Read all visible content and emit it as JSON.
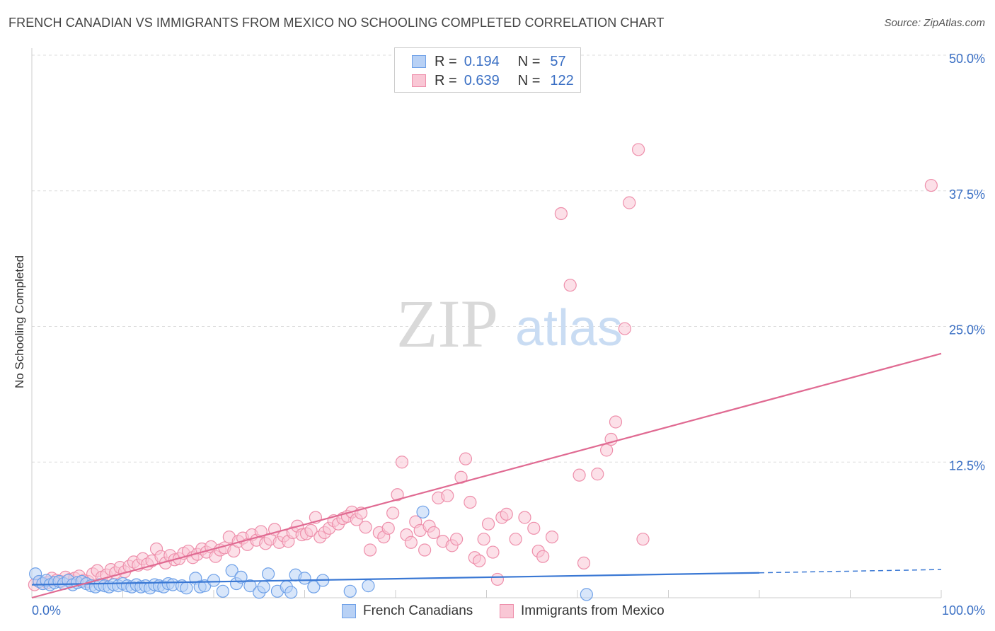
{
  "title": "FRENCH CANADIAN VS IMMIGRANTS FROM MEXICO NO SCHOOLING COMPLETED CORRELATION CHART",
  "source": "Source: ZipAtlas.com",
  "watermark": {
    "zip": "ZIP",
    "atlas": "atlas"
  },
  "legend": {
    "rows": [
      {
        "r_label": "R =",
        "r_value": "0.194",
        "n_label": "N =",
        "n_value": "57",
        "color": "#6fa1e8",
        "fill": "#b8d1f5"
      },
      {
        "r_label": "R =",
        "r_value": "0.639",
        "n_label": "N =",
        "n_value": "122",
        "color": "#ee8fab",
        "fill": "#f9c7d5"
      }
    ]
  },
  "bottom_legend": [
    {
      "label": "French Canadians"
    },
    {
      "label": "Immigrants from Mexico"
    }
  ],
  "chart_data": {
    "type": "scatter",
    "title": "FRENCH CANADIAN VS IMMIGRANTS FROM MEXICO NO SCHOOLING COMPLETED CORRELATION CHART",
    "xlabel": "",
    "ylabel": "No Schooling Completed",
    "xlim": [
      0,
      100
    ],
    "ylim": [
      0,
      50
    ],
    "x_tick_labels": [
      "0.0%",
      "100.0%"
    ],
    "y_ticks": [
      12.5,
      25.0,
      37.5,
      50.0
    ],
    "y_tick_labels": [
      "12.5%",
      "25.0%",
      "37.5%",
      "50.0%"
    ],
    "grid": true,
    "series": [
      {
        "name": "French Canadians",
        "color": "#6fa1e8",
        "fill": "#b8d1f5",
        "trend": {
          "x": [
            0,
            80
          ],
          "y": [
            1.2,
            2.3
          ],
          "dashed_to": [
            100,
            2.6
          ],
          "color": "#3a78d4"
        },
        "points": [
          [
            0.4,
            2.2
          ],
          [
            0.8,
            1.5
          ],
          [
            1.2,
            1.3
          ],
          [
            1.6,
            1.6
          ],
          [
            2.0,
            1.2
          ],
          [
            2.5,
            1.4
          ],
          [
            3.0,
            1.5
          ],
          [
            3.5,
            1.3
          ],
          [
            4.0,
            1.6
          ],
          [
            4.5,
            1.2
          ],
          [
            5.0,
            1.4
          ],
          [
            5.5,
            1.5
          ],
          [
            6.0,
            1.3
          ],
          [
            6.5,
            1.1
          ],
          [
            7.0,
            1.0
          ],
          [
            7.5,
            1.2
          ],
          [
            8.0,
            1.1
          ],
          [
            8.5,
            1.0
          ],
          [
            9.0,
            1.2
          ],
          [
            9.5,
            1.1
          ],
          [
            10.0,
            1.3
          ],
          [
            10.5,
            1.1
          ],
          [
            11.0,
            1.0
          ],
          [
            11.5,
            1.2
          ],
          [
            12.0,
            1.0
          ],
          [
            12.5,
            1.1
          ],
          [
            13.0,
            0.9
          ],
          [
            13.5,
            1.2
          ],
          [
            14.0,
            1.1
          ],
          [
            14.5,
            1.0
          ],
          [
            15.0,
            1.3
          ],
          [
            15.5,
            1.2
          ],
          [
            16.5,
            1.1
          ],
          [
            17.0,
            0.9
          ],
          [
            18.0,
            1.8
          ],
          [
            18.5,
            1.0
          ],
          [
            19.0,
            1.1
          ],
          [
            20.0,
            1.6
          ],
          [
            21.0,
            0.6
          ],
          [
            22.0,
            2.5
          ],
          [
            22.5,
            1.3
          ],
          [
            23.0,
            1.9
          ],
          [
            24.0,
            1.1
          ],
          [
            25.0,
            0.5
          ],
          [
            25.5,
            1.0
          ],
          [
            26.0,
            2.2
          ],
          [
            27.0,
            0.6
          ],
          [
            28.0,
            1.0
          ],
          [
            28.5,
            0.5
          ],
          [
            29.0,
            2.1
          ],
          [
            30.0,
            1.8
          ],
          [
            31.0,
            1.0
          ],
          [
            32.0,
            1.6
          ],
          [
            35.0,
            0.6
          ],
          [
            37.0,
            1.1
          ],
          [
            43.0,
            7.9
          ],
          [
            61.0,
            0.3
          ]
        ]
      },
      {
        "name": "Immigrants from Mexico",
        "color": "#ee8fab",
        "fill": "#f9c7d5",
        "trend": {
          "x": [
            0,
            100
          ],
          "y": [
            0.0,
            22.5
          ],
          "color": "#e06a92"
        },
        "points": [
          [
            0.3,
            1.2
          ],
          [
            0.8,
            1.5
          ],
          [
            1.2,
            1.3
          ],
          [
            1.7,
            1.4
          ],
          [
            2.2,
            1.8
          ],
          [
            2.7,
            1.6
          ],
          [
            3.2,
            1.5
          ],
          [
            3.7,
            1.9
          ],
          [
            4.2,
            1.7
          ],
          [
            4.7,
            1.8
          ],
          [
            5.2,
            2.0
          ],
          [
            5.7,
            1.6
          ],
          [
            6.2,
            1.5
          ],
          [
            6.7,
            2.2
          ],
          [
            7.2,
            2.5
          ],
          [
            7.7,
            1.9
          ],
          [
            8.2,
            2.1
          ],
          [
            8.7,
            2.6
          ],
          [
            9.2,
            2.3
          ],
          [
            9.7,
            2.8
          ],
          [
            10.2,
            2.4
          ],
          [
            10.7,
            2.9
          ],
          [
            11.2,
            3.3
          ],
          [
            11.7,
            3.0
          ],
          [
            12.2,
            3.6
          ],
          [
            12.7,
            3.1
          ],
          [
            13.2,
            3.4
          ],
          [
            13.7,
            4.5
          ],
          [
            14.2,
            3.8
          ],
          [
            14.7,
            3.2
          ],
          [
            15.2,
            3.9
          ],
          [
            15.7,
            3.5
          ],
          [
            16.2,
            3.6
          ],
          [
            16.7,
            4.1
          ],
          [
            17.2,
            4.3
          ],
          [
            17.7,
            3.7
          ],
          [
            18.2,
            4.0
          ],
          [
            18.7,
            4.5
          ],
          [
            19.2,
            4.2
          ],
          [
            19.7,
            4.7
          ],
          [
            20.2,
            3.8
          ],
          [
            20.7,
            4.4
          ],
          [
            21.2,
            4.6
          ],
          [
            21.7,
            5.6
          ],
          [
            22.2,
            4.3
          ],
          [
            22.7,
            5.2
          ],
          [
            23.2,
            5.5
          ],
          [
            23.7,
            4.9
          ],
          [
            24.2,
            5.8
          ],
          [
            24.7,
            5.3
          ],
          [
            25.2,
            6.1
          ],
          [
            25.7,
            5.0
          ],
          [
            26.2,
            5.4
          ],
          [
            26.7,
            6.3
          ],
          [
            27.2,
            5.1
          ],
          [
            27.7,
            5.7
          ],
          [
            28.2,
            5.2
          ],
          [
            28.7,
            6.0
          ],
          [
            29.2,
            6.6
          ],
          [
            29.7,
            5.8
          ],
          [
            30.2,
            5.9
          ],
          [
            30.7,
            6.2
          ],
          [
            31.2,
            7.4
          ],
          [
            31.7,
            5.6
          ],
          [
            32.2,
            6.0
          ],
          [
            32.7,
            6.4
          ],
          [
            33.2,
            7.1
          ],
          [
            33.7,
            6.8
          ],
          [
            34.2,
            7.3
          ],
          [
            34.7,
            7.5
          ],
          [
            35.2,
            7.9
          ],
          [
            35.7,
            7.2
          ],
          [
            36.2,
            7.8
          ],
          [
            36.7,
            6.5
          ],
          [
            37.2,
            4.4
          ],
          [
            38.2,
            6.0
          ],
          [
            38.7,
            5.6
          ],
          [
            39.2,
            6.4
          ],
          [
            39.7,
            7.8
          ],
          [
            40.2,
            9.5
          ],
          [
            40.7,
            12.5
          ],
          [
            41.2,
            5.8
          ],
          [
            41.7,
            5.1
          ],
          [
            42.2,
            7.0
          ],
          [
            42.7,
            6.2
          ],
          [
            43.2,
            4.4
          ],
          [
            43.7,
            6.6
          ],
          [
            44.2,
            6.0
          ],
          [
            44.7,
            9.2
          ],
          [
            45.2,
            5.2
          ],
          [
            45.7,
            9.4
          ],
          [
            46.2,
            4.8
          ],
          [
            46.7,
            5.4
          ],
          [
            47.2,
            11.1
          ],
          [
            47.7,
            12.8
          ],
          [
            48.2,
            8.8
          ],
          [
            48.7,
            3.7
          ],
          [
            49.2,
            3.4
          ],
          [
            49.7,
            5.4
          ],
          [
            50.2,
            6.8
          ],
          [
            50.7,
            4.2
          ],
          [
            51.2,
            1.7
          ],
          [
            51.7,
            7.4
          ],
          [
            52.2,
            7.7
          ],
          [
            53.2,
            5.4
          ],
          [
            54.2,
            7.4
          ],
          [
            55.2,
            6.4
          ],
          [
            55.7,
            4.3
          ],
          [
            56.2,
            3.8
          ],
          [
            57.2,
            5.6
          ],
          [
            58.2,
            35.4
          ],
          [
            59.2,
            28.8
          ],
          [
            60.2,
            11.3
          ],
          [
            60.7,
            3.2
          ],
          [
            62.2,
            11.4
          ],
          [
            63.2,
            13.6
          ],
          [
            63.7,
            14.6
          ],
          [
            64.2,
            16.2
          ],
          [
            65.2,
            24.8
          ],
          [
            65.7,
            36.4
          ],
          [
            66.7,
            41.3
          ],
          [
            67.2,
            5.4
          ]
        ],
        "outlier_points": [
          [
            98.9,
            38.0
          ]
        ]
      }
    ]
  }
}
